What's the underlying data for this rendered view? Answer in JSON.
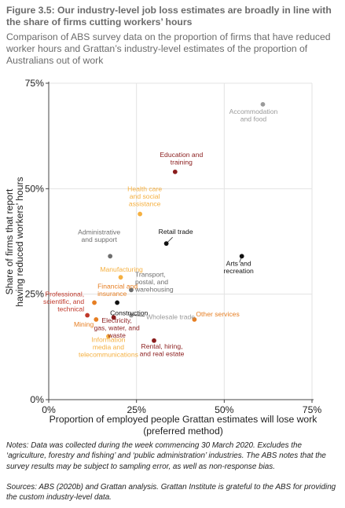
{
  "figure": {
    "title": "Figure 3.5: Our industry-level job loss estimates are broadly in line with the share of firms cutting workers’ hours",
    "subtitle": "Comparison of ABS survey data on the proportion of firms that have reduced worker hours and Grattan’s industry-level estimates of the proportion of Australians out of work",
    "notes": "Notes: Data was collected during the week commencing 30 March 2020. Excludes the ‘agriculture, forestry and fishing’ and ‘public administration’ industries. The ABS notes that the survey results may be subject to sampling error, as well as non-response bias.",
    "sources": "Sources: ABS (2020b) and Grattan analysis. Grattan Institute is grateful to the ABS for providing the custom industry-level data."
  },
  "chart_data": {
    "type": "scatter",
    "xlabel_line1": "Proportion of employed people Grattan estimates will lose work",
    "xlabel_line2": "(preferred method)",
    "ylabel_line1": "Share of firms that report",
    "ylabel_line2": "having reduced workers’ hours",
    "xlim": [
      0,
      75
    ],
    "ylim": [
      0,
      75
    ],
    "xticks": [
      0,
      25,
      50,
      75
    ],
    "yticks": [
      0,
      25,
      50,
      75
    ],
    "xtick_labels": [
      "0%",
      "25%",
      "50%",
      "75%"
    ],
    "ytick_labels": [
      "0%",
      "25%",
      "50%",
      "75%"
    ],
    "grid": true,
    "points": [
      {
        "label": "Accommodation and food",
        "x": 61.0,
        "y": 70.0,
        "color": "#9a9a9a"
      },
      {
        "label": "Education and training",
        "x": 36.0,
        "y": 54.0,
        "color": "#8a1c1c"
      },
      {
        "label": "Health care and social assistance",
        "x": 26.0,
        "y": 44.0,
        "color": "#f5b041"
      },
      {
        "label": "Retail trade",
        "x": 33.5,
        "y": 37.0,
        "color": "#111111"
      },
      {
        "label": "Arts and recreation",
        "x": 55.0,
        "y": 34.0,
        "color": "#111111"
      },
      {
        "label": "Administrative and support",
        "x": 17.5,
        "y": 34.0,
        "color": "#6e6e6e"
      },
      {
        "label": "Manufacturing",
        "x": 20.5,
        "y": 29.0,
        "color": "#f5b041"
      },
      {
        "label": "Transport, postal, and warehousing",
        "x": 23.5,
        "y": 26.0,
        "color": "#6e6e6e"
      },
      {
        "label": "Financial and insurance",
        "x": 13.0,
        "y": 23.0,
        "color": "#e67e22"
      },
      {
        "label": "Construction",
        "x": 19.5,
        "y": 23.0,
        "color": "#111111"
      },
      {
        "label": "Professional, scientific, and technical",
        "x": 11.0,
        "y": 20.0,
        "color": "#c0392b"
      },
      {
        "label": "Mining",
        "x": 13.5,
        "y": 19.0,
        "color": "#e67e22"
      },
      {
        "label": "Electricity, gas, water, and waste",
        "x": 18.5,
        "y": 19.5,
        "color": "#8a1c1c"
      },
      {
        "label": "Wholesale trade",
        "x": 23.5,
        "y": 20.0,
        "color": "#9a9a9a"
      },
      {
        "label": "Other services",
        "x": 41.5,
        "y": 19.0,
        "color": "#e67e22"
      },
      {
        "label": "Information media and telecommunications",
        "x": 17.0,
        "y": 15.0,
        "color": "#f5b041"
      },
      {
        "label": "Rental, hiring, and real estate",
        "x": 30.0,
        "y": 14.0,
        "color": "#8a1c1c"
      }
    ]
  }
}
